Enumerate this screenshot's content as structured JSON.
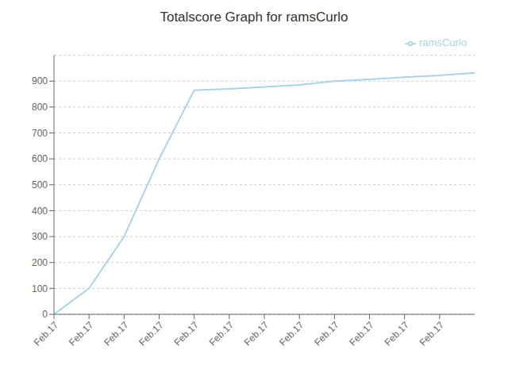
{
  "chart_data": {
    "type": "line",
    "title": "Totalscore Graph for ramsCurlo",
    "x": [
      0,
      1,
      2,
      3,
      4,
      5,
      6,
      7,
      8,
      9,
      10,
      11,
      12
    ],
    "series": [
      {
        "name": "ramsCurlo",
        "color": "#aad4e8",
        "values": [
          0,
          100,
          300,
          600,
          865,
          870,
          878,
          885,
          900,
          907,
          915,
          922,
          932
        ]
      }
    ],
    "xlim": [
      0,
      12
    ],
    "xticks": [
      {
        "value": 0,
        "label": "Feb.17"
      },
      {
        "value": 1,
        "label": "Feb.17"
      },
      {
        "value": 2,
        "label": "Feb.17"
      },
      {
        "value": 3,
        "label": "Feb.17"
      },
      {
        "value": 4,
        "label": "Feb.17"
      },
      {
        "value": 5,
        "label": "Feb.17"
      },
      {
        "value": 6,
        "label": "Feb.17"
      },
      {
        "value": 7,
        "label": "Feb.17"
      },
      {
        "value": 8,
        "label": "Feb.17"
      },
      {
        "value": 9,
        "label": "Feb.17"
      },
      {
        "value": 10,
        "label": "Feb.17"
      },
      {
        "value": 11,
        "label": "Feb.17"
      }
    ],
    "ylim": [
      0,
      1000
    ],
    "yticks": [
      0,
      100,
      200,
      300,
      400,
      500,
      600,
      700,
      800,
      900
    ],
    "grid": true,
    "legend": "upper right"
  }
}
